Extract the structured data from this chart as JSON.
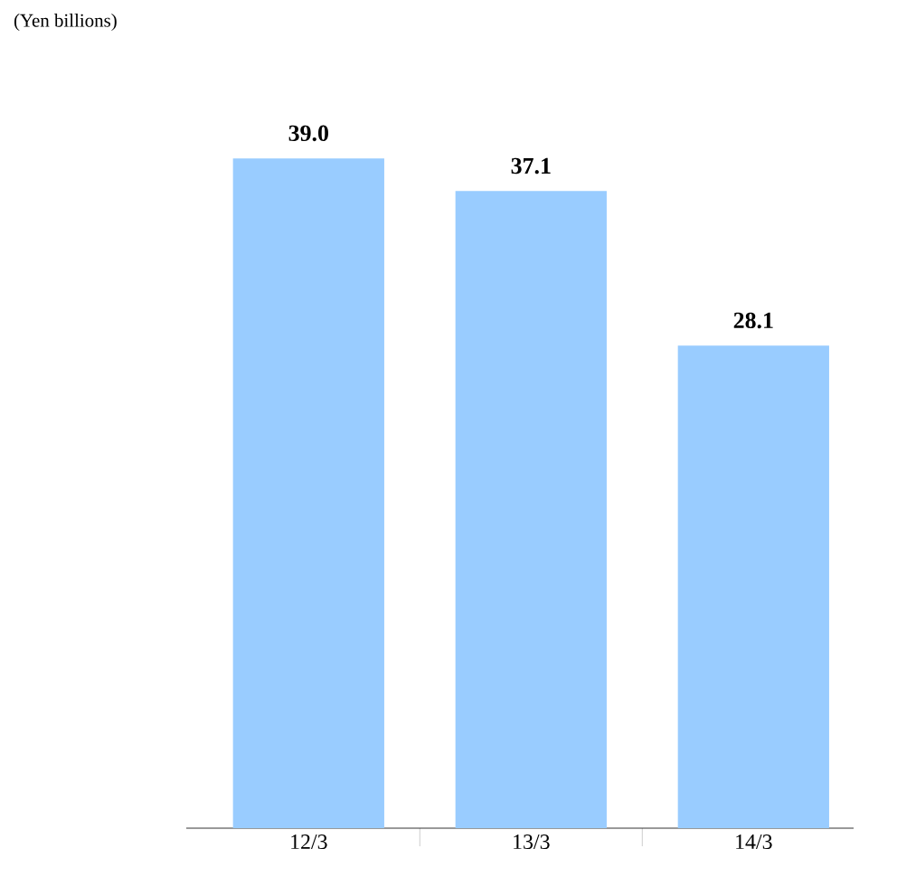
{
  "chart_data": {
    "type": "bar",
    "annotations": [
      "(Yen billions)"
    ],
    "categories": [
      "12/3",
      "13/3",
      "14/3"
    ],
    "values": [
      39.0,
      37.1,
      28.1
    ],
    "value_labels": [
      "39.0",
      "37.1",
      "28.1"
    ],
    "color": "#99ccff"
  }
}
